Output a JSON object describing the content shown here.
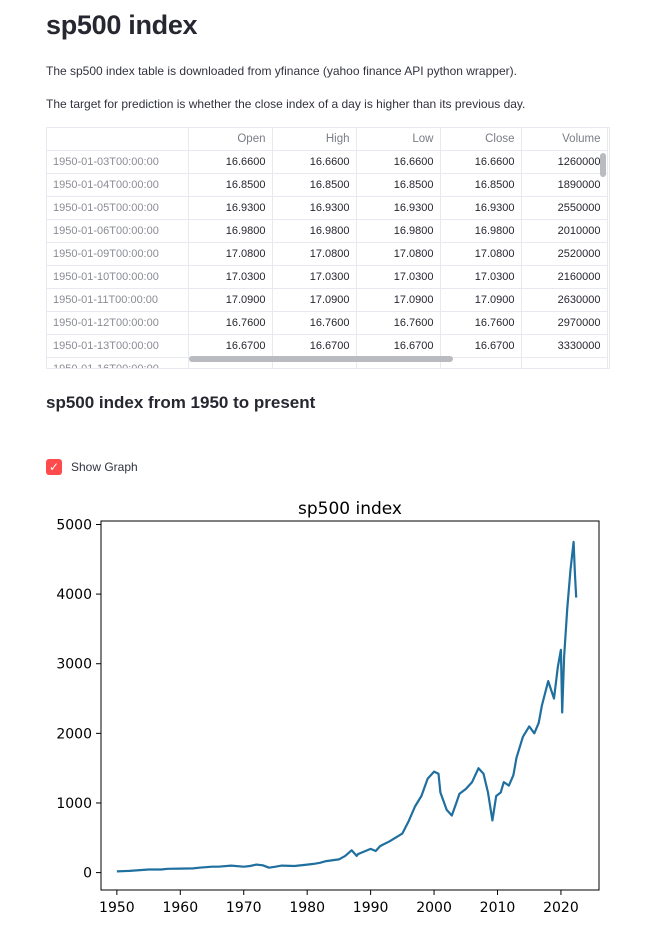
{
  "page": {
    "title": "sp500 index",
    "intro": "The sp500 index table is downloaded from yfinance (yahoo finance API python wrapper).",
    "target": "The target for prediction is whether the close index of a day is higher than its previous day.",
    "section_heading": "sp500 index from 1950 to present",
    "checkbox_label": "Show Graph",
    "checkbox_checked": true
  },
  "table": {
    "columns": [
      "",
      "Open",
      "High",
      "Low",
      "Close",
      "Volume"
    ],
    "rows": [
      {
        "date": "1950-01-03T00:00:00",
        "open": "16.6600",
        "high": "16.6600",
        "low": "16.6600",
        "close": "16.6600",
        "volume": "1260000"
      },
      {
        "date": "1950-01-04T00:00:00",
        "open": "16.8500",
        "high": "16.8500",
        "low": "16.8500",
        "close": "16.8500",
        "volume": "1890000"
      },
      {
        "date": "1950-01-05T00:00:00",
        "open": "16.9300",
        "high": "16.9300",
        "low": "16.9300",
        "close": "16.9300",
        "volume": "2550000"
      },
      {
        "date": "1950-01-06T00:00:00",
        "open": "16.9800",
        "high": "16.9800",
        "low": "16.9800",
        "close": "16.9800",
        "volume": "2010000"
      },
      {
        "date": "1950-01-09T00:00:00",
        "open": "17.0800",
        "high": "17.0800",
        "low": "17.0800",
        "close": "17.0800",
        "volume": "2520000"
      },
      {
        "date": "1950-01-10T00:00:00",
        "open": "17.0300",
        "high": "17.0300",
        "low": "17.0300",
        "close": "17.0300",
        "volume": "2160000"
      },
      {
        "date": "1950-01-11T00:00:00",
        "open": "17.0900",
        "high": "17.0900",
        "low": "17.0900",
        "close": "17.0900",
        "volume": "2630000"
      },
      {
        "date": "1950-01-12T00:00:00",
        "open": "16.7600",
        "high": "16.7600",
        "low": "16.7600",
        "close": "16.7600",
        "volume": "2970000"
      },
      {
        "date": "1950-01-13T00:00:00",
        "open": "16.6700",
        "high": "16.6700",
        "low": "16.6700",
        "close": "16.6700",
        "volume": "3330000"
      },
      {
        "date": "1950-01-16T00:00:00",
        "open": "",
        "high": "",
        "low": "",
        "close": "",
        "volume": ""
      }
    ]
  },
  "colors": {
    "accent": "#ff4b4b",
    "line": "#1f6f9f"
  },
  "chart_data": {
    "type": "line",
    "title": "sp500 index",
    "xlabel": "",
    "ylabel": "",
    "xlim": [
      1947.5,
      2026
    ],
    "ylim": [
      -250,
      5050
    ],
    "xticks": [
      1950,
      1960,
      1970,
      1980,
      1990,
      2000,
      2010,
      2020
    ],
    "yticks": [
      0,
      1000,
      2000,
      3000,
      4000,
      5000
    ],
    "grid": false,
    "series": [
      {
        "name": "",
        "x": [
          1950,
          1952,
          1955,
          1957,
          1958,
          1960,
          1962,
          1963,
          1965,
          1966,
          1968,
          1970,
          1971,
          1972,
          1973,
          1974,
          1975,
          1976,
          1978,
          1980,
          1981,
          1982,
          1983,
          1985,
          1986,
          1987,
          1987.8,
          1988,
          1990,
          1990.8,
          1991.5,
          1993,
          1995,
          1996,
          1997,
          1998,
          1999,
          2000,
          2000.7,
          2001,
          2002,
          2002.8,
          2003.5,
          2004,
          2005,
          2006,
          2007,
          2007.8,
          2008.5,
          2009.2,
          2009.8,
          2010.5,
          2011,
          2011.8,
          2012.5,
          2013,
          2014,
          2015,
          2015.8,
          2016.5,
          2017,
          2018,
          2018.9,
          2019.5,
          2020.0,
          2020.2,
          2020.5,
          2021,
          2021.5,
          2022.0,
          2022.2,
          2022.4
        ],
        "y": [
          17,
          24,
          45,
          44,
          55,
          58,
          60,
          70,
          85,
          85,
          100,
          85,
          95,
          115,
          105,
          70,
          85,
          100,
          95,
          115,
          125,
          140,
          165,
          190,
          240,
          320,
          240,
          265,
          340,
          310,
          380,
          450,
          560,
          740,
          950,
          1100,
          1350,
          1450,
          1420,
          1150,
          900,
          820,
          1000,
          1130,
          1200,
          1300,
          1500,
          1420,
          1150,
          750,
          1100,
          1150,
          1300,
          1250,
          1400,
          1650,
          1950,
          2100,
          2000,
          2150,
          2400,
          2750,
          2500,
          2950,
          3200,
          2300,
          3100,
          3800,
          4350,
          4750,
          4300,
          3950
        ]
      }
    ]
  }
}
